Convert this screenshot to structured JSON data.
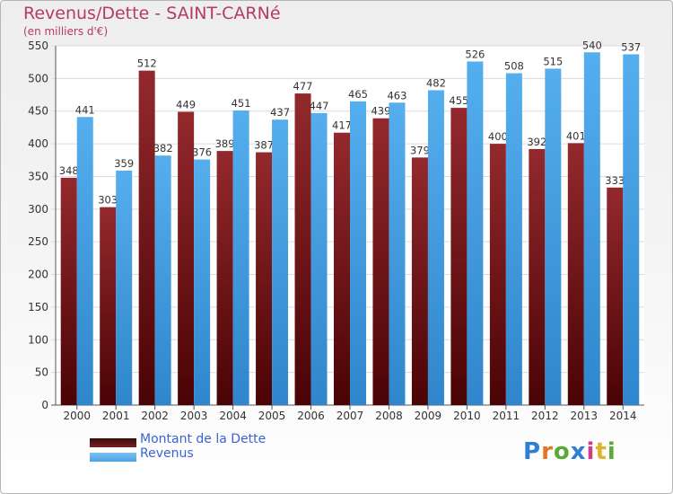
{
  "header": {
    "title": "Revenus/Dette - SAINT-CARNé",
    "subtitle": "(en milliers d'€)"
  },
  "legend": {
    "items": [
      {
        "label": "Montant de la Dette",
        "color": "#7a1f22"
      },
      {
        "label": "Revenus",
        "color": "#4aa3e6"
      }
    ]
  },
  "logo": {
    "text": "Proxiti"
  },
  "chart_data": {
    "type": "bar",
    "title": "Revenus/Dette - SAINT-CARNé",
    "subtitle": "(en milliers d'€)",
    "categories": [
      "2000",
      "2001",
      "2002",
      "2003",
      "2004",
      "2005",
      "2006",
      "2007",
      "2008",
      "2009",
      "2010",
      "2011",
      "2012",
      "2013",
      "2014"
    ],
    "series": [
      {
        "name": "Montant de la Dette",
        "color": "#7a1f22",
        "values": [
          348,
          303,
          512,
          449,
          389,
          387,
          477,
          417,
          439,
          379,
          455,
          400,
          392,
          401,
          333
        ]
      },
      {
        "name": "Revenus",
        "color": "#4aa3e6",
        "values": [
          441,
          359,
          382,
          376,
          451,
          437,
          447,
          465,
          463,
          482,
          526,
          508,
          515,
          540,
          537
        ]
      }
    ],
    "ylim": [
      0,
      550
    ],
    "yticks": [
      0,
      50,
      100,
      150,
      200,
      250,
      300,
      350,
      400,
      450,
      500,
      550
    ],
    "grid": true,
    "legend": "bottom-left"
  }
}
